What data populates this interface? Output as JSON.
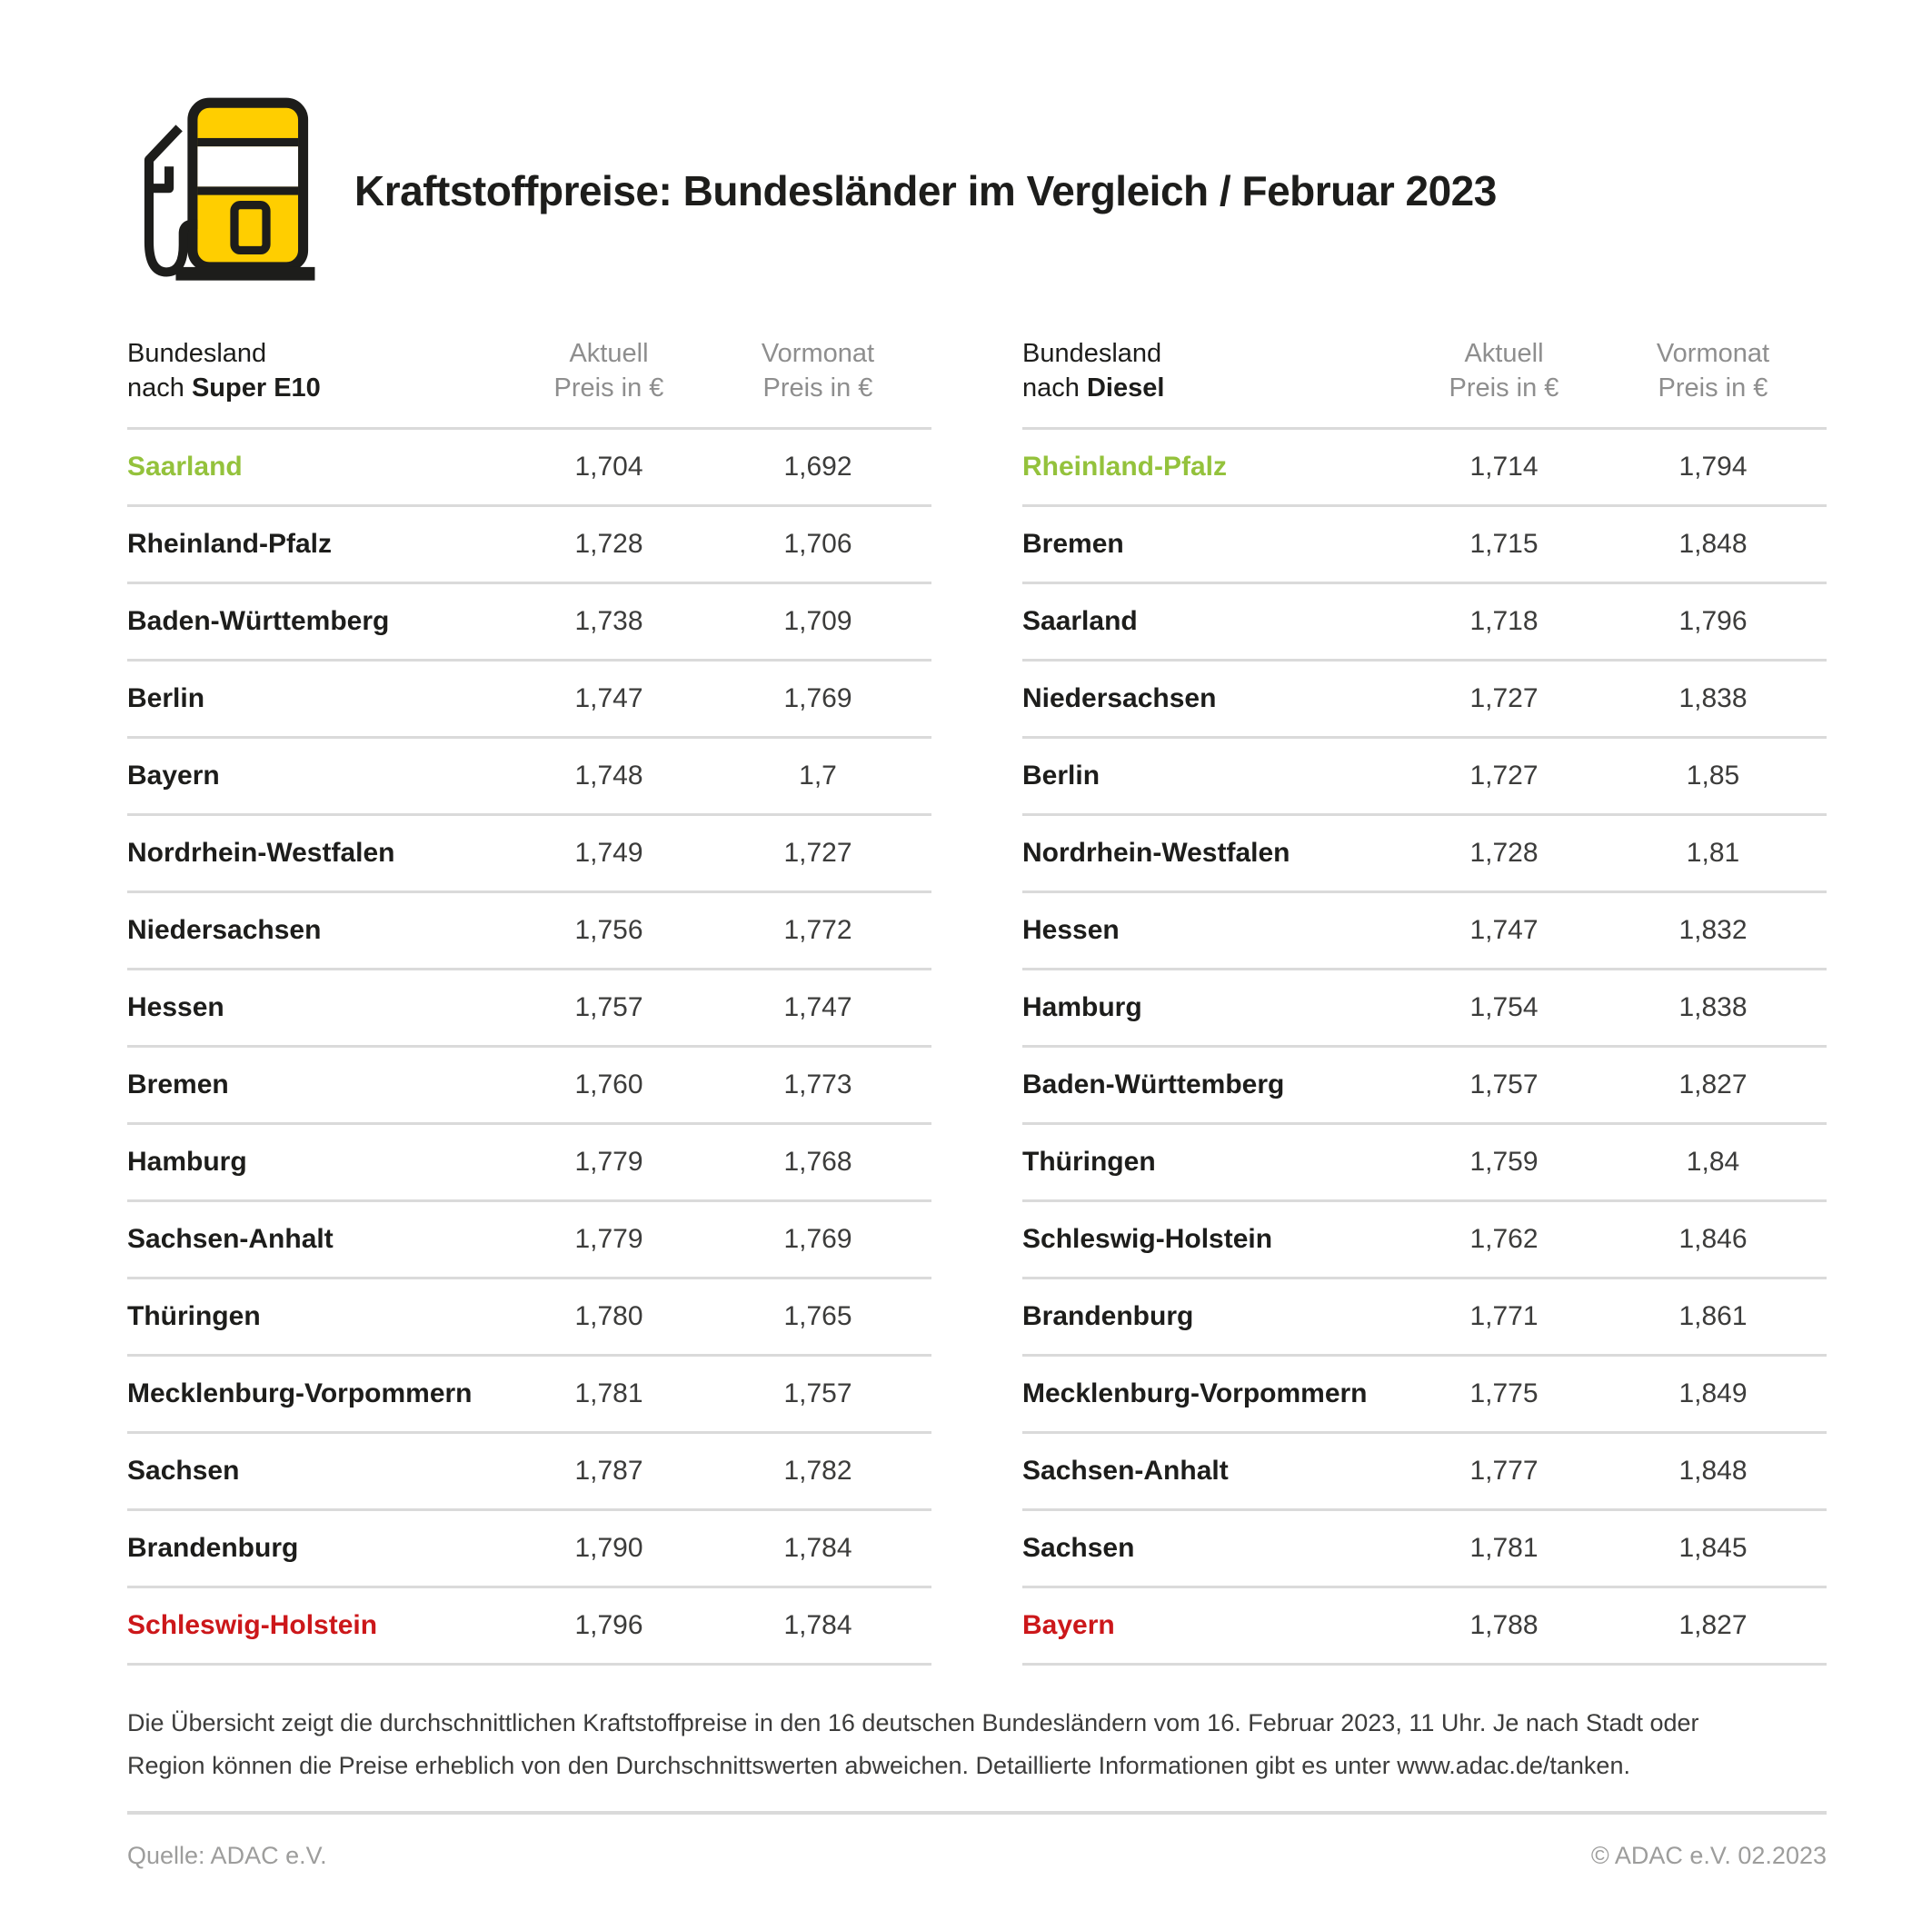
{
  "header": {
    "title": "Kraftstoffpreise: Bundesländer im Vergleich / Februar 2023",
    "icon": "fuel-pump-icon"
  },
  "colors": {
    "brand_yellow": "#FFCE00",
    "icon_outline": "#1D1D1B",
    "cheapest_green": "#94C23C",
    "most_expensive_red": "#CC171A",
    "divider_gray": "#DADADA",
    "muted_gray": "#8E8E8E"
  },
  "columns": {
    "aktuell_line1": "Aktuell",
    "aktuell_line2": "Preis in €",
    "vormonat_line1": "Vormonat",
    "vormonat_line2": "Preis in €"
  },
  "tables": [
    {
      "label_line1": "Bundesland",
      "label_prefix": "nach ",
      "fuel": "Super E10"
    },
    {
      "label_line1": "Bundesland",
      "label_prefix": "nach ",
      "fuel": "Diesel"
    }
  ],
  "chart_data": [
    {
      "type": "table",
      "title": "Bundesland nach Super E10",
      "columns": [
        "Bundesland",
        "Aktuell Preis in €",
        "Vormonat Preis in €"
      ],
      "rows": [
        {
          "bundesland": "Saarland",
          "aktuell": "1,704",
          "vormonat": "1,692",
          "color": "green"
        },
        {
          "bundesland": "Rheinland-Pfalz",
          "aktuell": "1,728",
          "vormonat": "1,706",
          "color": "none"
        },
        {
          "bundesland": "Baden-Württemberg",
          "aktuell": "1,738",
          "vormonat": "1,709",
          "color": "none"
        },
        {
          "bundesland": "Berlin",
          "aktuell": "1,747",
          "vormonat": "1,769",
          "color": "none"
        },
        {
          "bundesland": "Bayern",
          "aktuell": "1,748",
          "vormonat": "1,7",
          "color": "none"
        },
        {
          "bundesland": "Nordrhein-Westfalen",
          "aktuell": "1,749",
          "vormonat": "1,727",
          "color": "none"
        },
        {
          "bundesland": "Niedersachsen",
          "aktuell": "1,756",
          "vormonat": "1,772",
          "color": "none"
        },
        {
          "bundesland": "Hessen",
          "aktuell": "1,757",
          "vormonat": "1,747",
          "color": "none"
        },
        {
          "bundesland": "Bremen",
          "aktuell": "1,760",
          "vormonat": "1,773",
          "color": "none"
        },
        {
          "bundesland": "Hamburg",
          "aktuell": "1,779",
          "vormonat": "1,768",
          "color": "none"
        },
        {
          "bundesland": "Sachsen-Anhalt",
          "aktuell": "1,779",
          "vormonat": "1,769",
          "color": "none"
        },
        {
          "bundesland": "Thüringen",
          "aktuell": "1,780",
          "vormonat": "1,765",
          "color": "none"
        },
        {
          "bundesland": "Mecklenburg-Vorpommern",
          "aktuell": "1,781",
          "vormonat": "1,757",
          "color": "none"
        },
        {
          "bundesland": "Sachsen",
          "aktuell": "1,787",
          "vormonat": "1,782",
          "color": "none"
        },
        {
          "bundesland": "Brandenburg",
          "aktuell": "1,790",
          "vormonat": "1,784",
          "color": "none"
        },
        {
          "bundesland": "Schleswig-Holstein",
          "aktuell": "1,796",
          "vormonat": "1,784",
          "color": "red"
        }
      ]
    },
    {
      "type": "table",
      "title": "Bundesland nach Diesel",
      "columns": [
        "Bundesland",
        "Aktuell Preis in €",
        "Vormonat Preis in €"
      ],
      "rows": [
        {
          "bundesland": "Rheinland-Pfalz",
          "aktuell": "1,714",
          "vormonat": "1,794",
          "color": "green"
        },
        {
          "bundesland": "Bremen",
          "aktuell": "1,715",
          "vormonat": "1,848",
          "color": "none"
        },
        {
          "bundesland": "Saarland",
          "aktuell": "1,718",
          "vormonat": "1,796",
          "color": "none"
        },
        {
          "bundesland": "Niedersachsen",
          "aktuell": "1,727",
          "vormonat": "1,838",
          "color": "none"
        },
        {
          "bundesland": "Berlin",
          "aktuell": "1,727",
          "vormonat": "1,85",
          "color": "none"
        },
        {
          "bundesland": "Nordrhein-Westfalen",
          "aktuell": "1,728",
          "vormonat": "1,81",
          "color": "none"
        },
        {
          "bundesland": "Hessen",
          "aktuell": "1,747",
          "vormonat": "1,832",
          "color": "none"
        },
        {
          "bundesland": "Hamburg",
          "aktuell": "1,754",
          "vormonat": "1,838",
          "color": "none"
        },
        {
          "bundesland": "Baden-Württemberg",
          "aktuell": "1,757",
          "vormonat": "1,827",
          "color": "none"
        },
        {
          "bundesland": "Thüringen",
          "aktuell": "1,759",
          "vormonat": "1,84",
          "color": "none"
        },
        {
          "bundesland": "Schleswig-Holstein",
          "aktuell": "1,762",
          "vormonat": "1,846",
          "color": "none"
        },
        {
          "bundesland": "Brandenburg",
          "aktuell": "1,771",
          "vormonat": "1,861",
          "color": "none"
        },
        {
          "bundesland": "Mecklenburg-Vorpommern",
          "aktuell": "1,775",
          "vormonat": "1,849",
          "color": "none"
        },
        {
          "bundesland": "Sachsen-Anhalt",
          "aktuell": "1,777",
          "vormonat": "1,848",
          "color": "none"
        },
        {
          "bundesland": "Sachsen",
          "aktuell": "1,781",
          "vormonat": "1,845",
          "color": "none"
        },
        {
          "bundesland": "Bayern",
          "aktuell": "1,788",
          "vormonat": "1,827",
          "color": "red"
        }
      ]
    }
  ],
  "footnote": {
    "text": "Die Übersicht zeigt die durchschnittlichen Kraftstoffpreise in den 16 deutschen Bundesländern vom 16. Februar 2023, 11 Uhr. Je nach Stadt oder Region können die Preise erheblich von den Durchschnittswerten abweichen. Detaillierte Informationen gibt es unter www.adac.de/tanken."
  },
  "footer": {
    "source": "Quelle: ADAC e.V.",
    "copyright": "© ADAC e.V. 02.2023"
  }
}
